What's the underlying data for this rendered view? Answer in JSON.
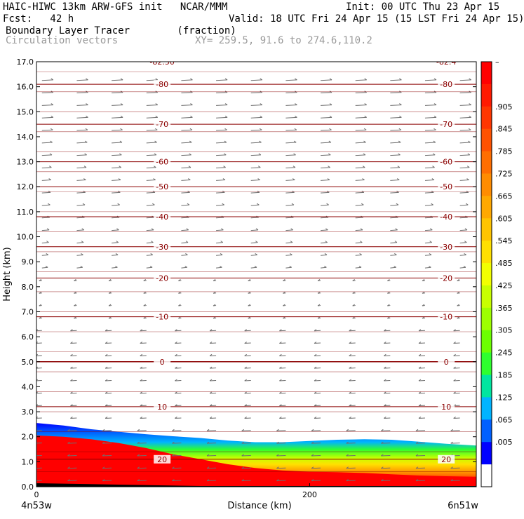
{
  "header": {
    "model": "HAIC-HIWC 13km ARW-GFS init   NCAR/MMM",
    "init": "Init: 00 UTC Thu 23 Apr 15",
    "fcst": "Fcst:   42 h",
    "valid": "Valid: 18 UTC Fri 24 Apr 15 (15 LST Fri 24 Apr 15)",
    "field": "Boundary Layer Tracer        (fraction)",
    "vectors": "Circulation vectors",
    "xy": "XY= 259.5, 91.6 to 274.6,110.2"
  },
  "chart_data": {
    "type": "heatmap",
    "xlabel": "Distance (km)",
    "ylabel": "Height (km)",
    "xlim": [
      0,
      322
    ],
    "ylim": [
      0,
      17
    ],
    "x_ticks": [
      0,
      200
    ],
    "x_tick_labels": [
      "0",
      "200"
    ],
    "x_end_labels": [
      "4n53w",
      "6n51w"
    ],
    "y_ticks": [
      0,
      1,
      2,
      3,
      4,
      5,
      6,
      7,
      8,
      9,
      10,
      11,
      12,
      13,
      14,
      15,
      16,
      17
    ],
    "y_tick_labels": [
      "0.0",
      "1.0",
      "2.0",
      "3.0",
      "4.0",
      "5.0",
      "6.0",
      "7.0",
      "8.0",
      "9.0",
      "10.0",
      "11.0",
      "12.0",
      "13.0",
      "14.0",
      "15.0",
      "16.0",
      "17.0"
    ],
    "colorbar": {
      "labels": [
        "–",
        ".905",
        ".845",
        ".785",
        ".725",
        ".665",
        ".605",
        ".545",
        ".485",
        ".425",
        ".365",
        ".305",
        ".245",
        ".185",
        ".125",
        ".065",
        ".005"
      ],
      "colors": [
        "#ff0000",
        "#ff1a00",
        "#ff3600",
        "#ff5200",
        "#ff6e00",
        "#ff8c00",
        "#ffa800",
        "#ffc400",
        "#ffe000",
        "#f2ff00",
        "#c8ff00",
        "#9eff00",
        "#6cff00",
        "#2eff2e",
        "#00e6a0",
        "#00b4ff",
        "#0060ff",
        "#0000ff",
        "#ffffff"
      ]
    },
    "tracer_top_km": [
      [
        0,
        2.55
      ],
      [
        20,
        2.45
      ],
      [
        40,
        2.3
      ],
      [
        60,
        2.2
      ],
      [
        80,
        2.1
      ],
      [
        100,
        2.02
      ],
      [
        120,
        1.95
      ],
      [
        140,
        1.85
      ],
      [
        160,
        1.78
      ],
      [
        180,
        1.78
      ],
      [
        200,
        1.83
      ],
      [
        220,
        1.88
      ],
      [
        240,
        1.9
      ],
      [
        260,
        1.88
      ],
      [
        280,
        1.8
      ],
      [
        300,
        1.72
      ],
      [
        322,
        1.65
      ]
    ],
    "tracer_core_top_km": [
      [
        0,
        2.05
      ],
      [
        20,
        2.0
      ],
      [
        40,
        1.9
      ],
      [
        60,
        1.75
      ],
      [
        80,
        1.55
      ],
      [
        100,
        1.3
      ],
      [
        120,
        1.1
      ],
      [
        140,
        0.9
      ],
      [
        160,
        0.75
      ],
      [
        180,
        0.65
      ],
      [
        200,
        0.6
      ],
      [
        220,
        0.58
      ],
      [
        240,
        0.55
      ],
      [
        260,
        0.5
      ],
      [
        280,
        0.45
      ],
      [
        300,
        0.42
      ],
      [
        322,
        0.4
      ]
    ],
    "temperature_contours": [
      {
        "label": "-80",
        "value": -80,
        "height_km": 16.1
      },
      {
        "label": "-70",
        "value": -70,
        "height_km": 14.5
      },
      {
        "label": "-60",
        "value": -60,
        "height_km": 13.0
      },
      {
        "label": "-50",
        "value": -50,
        "height_km": 12.0
      },
      {
        "label": "-40",
        "value": -40,
        "height_km": 10.8
      },
      {
        "label": "-30",
        "value": -30,
        "height_km": 9.6
      },
      {
        "label": "-20",
        "value": -20,
        "height_km": 8.35
      },
      {
        "label": "-10",
        "value": -10,
        "height_km": 6.8
      },
      {
        "label": "0",
        "value": 0,
        "height_km": 5.0
      },
      {
        "label": "10",
        "value": 10,
        "height_km": 3.2
      },
      {
        "label": "20",
        "value": 20,
        "height_km": 1.1
      }
    ],
    "top_partial_labels": [
      "-82.50",
      "-82.4"
    ],
    "vectors": {
      "upper_direction": "eastward",
      "lower_direction": "westward",
      "transition_km": 8.5
    }
  }
}
